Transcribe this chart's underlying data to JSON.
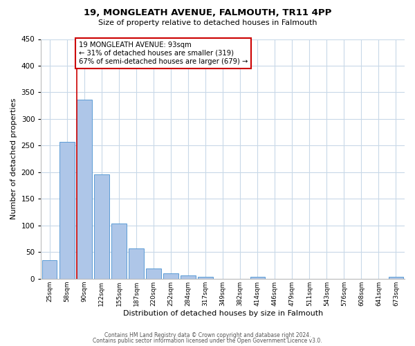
{
  "title": "19, MONGLEATH AVENUE, FALMOUTH, TR11 4PP",
  "subtitle": "Size of property relative to detached houses in Falmouth",
  "xlabel": "Distribution of detached houses by size in Falmouth",
  "ylabel": "Number of detached properties",
  "bar_labels": [
    "25sqm",
    "58sqm",
    "90sqm",
    "122sqm",
    "155sqm",
    "187sqm",
    "220sqm",
    "252sqm",
    "284sqm",
    "317sqm",
    "349sqm",
    "382sqm",
    "414sqm",
    "446sqm",
    "479sqm",
    "511sqm",
    "543sqm",
    "576sqm",
    "608sqm",
    "641sqm",
    "673sqm"
  ],
  "bar_heights": [
    35,
    257,
    336,
    196,
    104,
    57,
    19,
    10,
    6,
    4,
    0,
    0,
    3,
    0,
    0,
    0,
    0,
    0,
    0,
    0,
    3
  ],
  "bar_color": "#aec6e8",
  "bar_edge_color": "#5b9bd5",
  "ylim": [
    0,
    450
  ],
  "yticks": [
    0,
    50,
    100,
    150,
    200,
    250,
    300,
    350,
    400,
    450
  ],
  "property_line_color": "#cc0000",
  "annotation_title": "19 MONGLEATH AVENUE: 93sqm",
  "annotation_line1": "← 31% of detached houses are smaller (319)",
  "annotation_line2": "67% of semi-detached houses are larger (679) →",
  "annotation_box_color": "#cc0000",
  "footer_line1": "Contains HM Land Registry data © Crown copyright and database right 2024.",
  "footer_line2": "Contains public sector information licensed under the Open Government Licence v3.0.",
  "background_color": "#ffffff",
  "grid_color": "#c8d8e8"
}
